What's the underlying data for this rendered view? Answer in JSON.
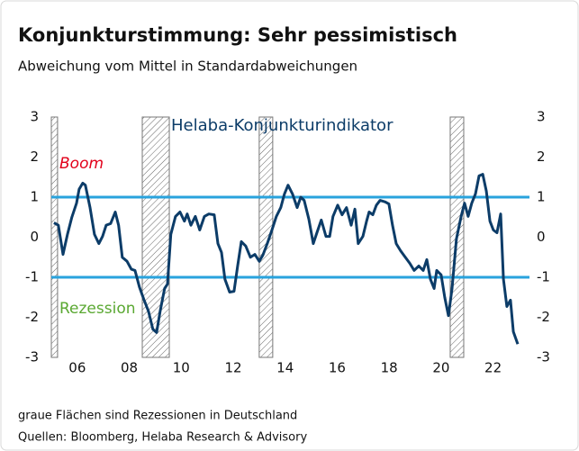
{
  "chart_data": {
    "type": "line",
    "title": "Konjunkturstimmung: Sehr pessimistisch",
    "subtitle": "Abweichung vom Mittel in Standardabweichungen",
    "annotations": [
      "Helaba-Konjunkturindikator",
      "Boom",
      "Rezession"
    ],
    "notes": [
      "graue Flächen sind Rezessionen in Deutschland",
      "Quellen: Bloomberg, Helaba Research & Advisory"
    ],
    "xlim": [
      2005.0,
      2023.4
    ],
    "xticks": [
      {
        "value": 2006,
        "label": "06"
      },
      {
        "value": 2008,
        "label": "08"
      },
      {
        "value": 2010,
        "label": "10"
      },
      {
        "value": 2012,
        "label": "12"
      },
      {
        "value": 2014,
        "label": "14"
      },
      {
        "value": 2016,
        "label": "16"
      },
      {
        "value": 2018,
        "label": "18"
      },
      {
        "value": 2020,
        "label": "20"
      },
      {
        "value": 2022,
        "label": "22"
      }
    ],
    "ylim": [
      -3,
      3
    ],
    "yticks": [
      -3,
      -2,
      -1,
      0,
      1,
      2,
      3
    ],
    "y2lim": [
      -3,
      3
    ],
    "y2ticks": [
      -3,
      -2,
      -1,
      0,
      1,
      2,
      3
    ],
    "reference_lines": [
      1,
      -1
    ],
    "reference_color": "#29a3dd",
    "shaded_regions": [
      [
        2005.0,
        2005.24
      ],
      [
        2008.5,
        2009.54
      ],
      [
        2013.0,
        2013.52
      ],
      [
        2020.35,
        2020.87
      ]
    ],
    "series": [
      {
        "name": "Helaba-Konjunkturindikator",
        "color": "#0c3c68",
        "x": [
          2005.1,
          2005.27,
          2005.45,
          2005.62,
          2005.79,
          2005.97,
          2006.07,
          2006.21,
          2006.31,
          2006.49,
          2006.66,
          2006.83,
          2006.97,
          2007.11,
          2007.28,
          2007.46,
          2007.59,
          2007.73,
          2007.91,
          2008.08,
          2008.22,
          2008.39,
          2008.56,
          2008.74,
          2008.91,
          2009.05,
          2009.19,
          2009.36,
          2009.47,
          2009.6,
          2009.78,
          2009.95,
          2010.12,
          2010.23,
          2010.37,
          2010.54,
          2010.71,
          2010.89,
          2011.06,
          2011.27,
          2011.41,
          2011.55,
          2011.68,
          2011.86,
          2012.03,
          2012.17,
          2012.31,
          2012.48,
          2012.66,
          2012.83,
          2013.0,
          2013.14,
          2013.31,
          2013.49,
          2013.66,
          2013.83,
          2013.97,
          2014.11,
          2014.28,
          2014.46,
          2014.6,
          2014.73,
          2014.91,
          2015.08,
          2015.22,
          2015.39,
          2015.57,
          2015.71,
          2015.84,
          2016.02,
          2016.19,
          2016.36,
          2016.54,
          2016.68,
          2016.81,
          2016.99,
          2017.13,
          2017.23,
          2017.37,
          2017.51,
          2017.65,
          2017.85,
          2017.99,
          2018.13,
          2018.27,
          2018.44,
          2018.62,
          2018.79,
          2018.96,
          2019.14,
          2019.31,
          2019.45,
          2019.59,
          2019.73,
          2019.83,
          2020.0,
          2020.14,
          2020.28,
          2020.42,
          2020.59,
          2020.77,
          2020.9,
          2021.04,
          2021.18,
          2021.32,
          2021.46,
          2021.6,
          2021.74,
          2021.88,
          2022.01,
          2022.15,
          2022.29,
          2022.4,
          2022.53,
          2022.67,
          2022.78,
          2022.95
        ],
        "values": [
          0.36,
          0.3,
          -0.43,
          0.07,
          0.5,
          0.85,
          1.2,
          1.35,
          1.3,
          0.74,
          0.07,
          -0.16,
          0.02,
          0.3,
          0.34,
          0.63,
          0.3,
          -0.5,
          -0.6,
          -0.8,
          -0.83,
          -1.24,
          -1.55,
          -1.85,
          -2.3,
          -2.38,
          -1.84,
          -1.28,
          -1.17,
          0.07,
          0.52,
          0.63,
          0.4,
          0.58,
          0.3,
          0.52,
          0.18,
          0.52,
          0.58,
          0.56,
          -0.16,
          -0.38,
          -1.05,
          -1.37,
          -1.35,
          -0.72,
          -0.11,
          -0.22,
          -0.5,
          -0.43,
          -0.6,
          -0.45,
          -0.16,
          0.18,
          0.52,
          0.74,
          1.08,
          1.3,
          1.08,
          0.74,
          1.0,
          0.92,
          0.45,
          -0.16,
          0.11,
          0.43,
          0.02,
          0.02,
          0.52,
          0.8,
          0.56,
          0.74,
          0.3,
          0.7,
          -0.16,
          0.02,
          0.4,
          0.63,
          0.56,
          0.8,
          0.92,
          0.88,
          0.83,
          0.3,
          -0.16,
          -0.34,
          -0.5,
          -0.65,
          -0.83,
          -0.72,
          -0.83,
          -0.56,
          -1.05,
          -1.28,
          -0.83,
          -0.94,
          -1.5,
          -1.96,
          -1.28,
          -0.04,
          0.52,
          0.85,
          0.52,
          0.85,
          1.08,
          1.53,
          1.57,
          1.15,
          0.4,
          0.18,
          0.11,
          0.58,
          -1.05,
          -1.73,
          -1.57,
          -2.36,
          -2.67
        ]
      }
    ]
  }
}
